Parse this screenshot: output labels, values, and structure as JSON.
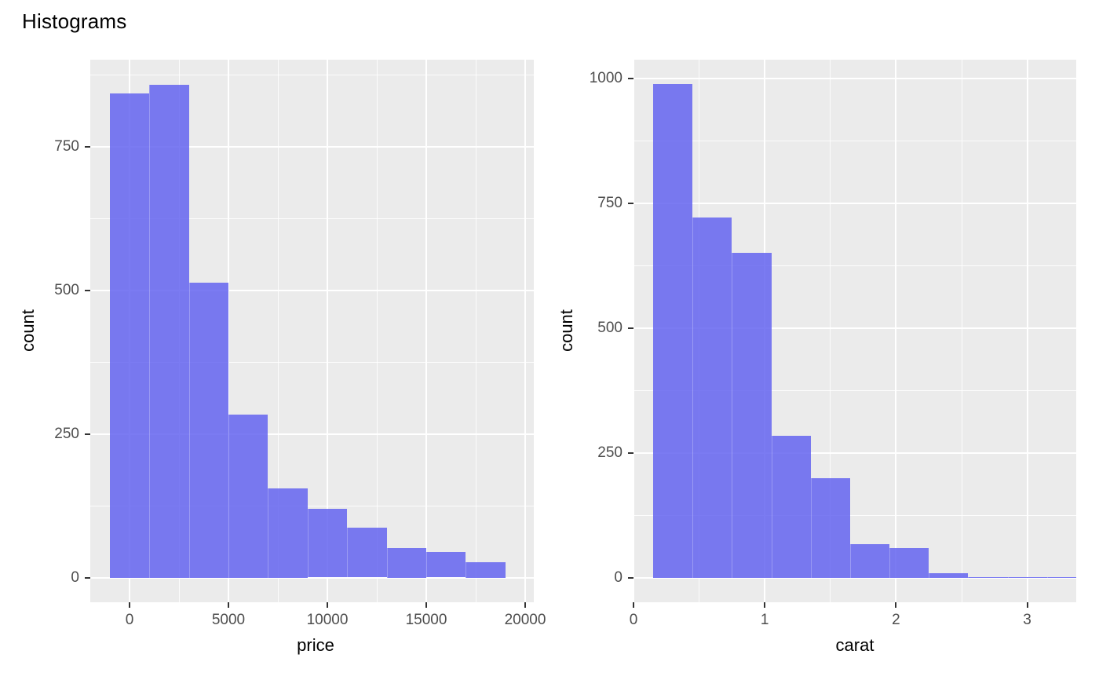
{
  "title": "Histograms",
  "colors": {
    "background": "#FFFFFF",
    "panel_background": "#EBEBEB",
    "bar_fill": "rgba(100,100,240,0.85)",
    "grid_major": "#FFFFFF",
    "grid_minor": "#FFFFFF",
    "tick_label": "#4D4D4D",
    "tick_mark": "#333333",
    "text": "#000000"
  },
  "chart_data": [
    {
      "type": "bar",
      "subtype": "histogram",
      "xlabel": "price",
      "ylabel": "count",
      "bin_start": -1000,
      "bin_width": 2000,
      "counts": [
        843,
        858,
        513,
        283,
        155,
        119,
        87,
        52,
        44,
        27
      ],
      "xlim": [
        -1984,
        20436
      ],
      "ylim": [
        -43,
        901
      ],
      "grid": "major+minor",
      "legend": "none",
      "x_ticks": [
        {
          "value": 0,
          "label": "0"
        },
        {
          "value": 5000,
          "label": "5000"
        },
        {
          "value": 10000,
          "label": "10000"
        },
        {
          "value": 15000,
          "label": "15000"
        },
        {
          "value": 20000,
          "label": "20000"
        }
      ],
      "y_ticks": [
        {
          "value": 0,
          "label": "0"
        },
        {
          "value": 250,
          "label": "250"
        },
        {
          "value": 500,
          "label": "500"
        },
        {
          "value": 750,
          "label": "750"
        }
      ],
      "x_minor": [
        2500,
        7500,
        12500,
        17500
      ],
      "y_minor": [
        125,
        375,
        625,
        875
      ]
    },
    {
      "type": "bar",
      "subtype": "histogram",
      "xlabel": "carat",
      "ylabel": "count",
      "bin_start": 0.15,
      "bin_width": 0.3,
      "counts": [
        988,
        721,
        650,
        284,
        200,
        67,
        59,
        9,
        2,
        1,
        1
      ],
      "xlim": [
        0,
        3.373
      ],
      "ylim": [
        -49,
        1037
      ],
      "grid": "major+minor",
      "legend": "none",
      "x_ticks": [
        {
          "value": 0,
          "label": "0"
        },
        {
          "value": 1,
          "label": "1"
        },
        {
          "value": 2,
          "label": "2"
        },
        {
          "value": 3,
          "label": "3"
        }
      ],
      "y_ticks": [
        {
          "value": 0,
          "label": "0"
        },
        {
          "value": 250,
          "label": "250"
        },
        {
          "value": 500,
          "label": "500"
        },
        {
          "value": 750,
          "label": "750"
        },
        {
          "value": 1000,
          "label": "1000"
        }
      ],
      "x_minor": [
        0.5,
        1.5,
        2.5
      ],
      "y_minor": [
        125,
        375,
        625,
        875
      ]
    }
  ]
}
